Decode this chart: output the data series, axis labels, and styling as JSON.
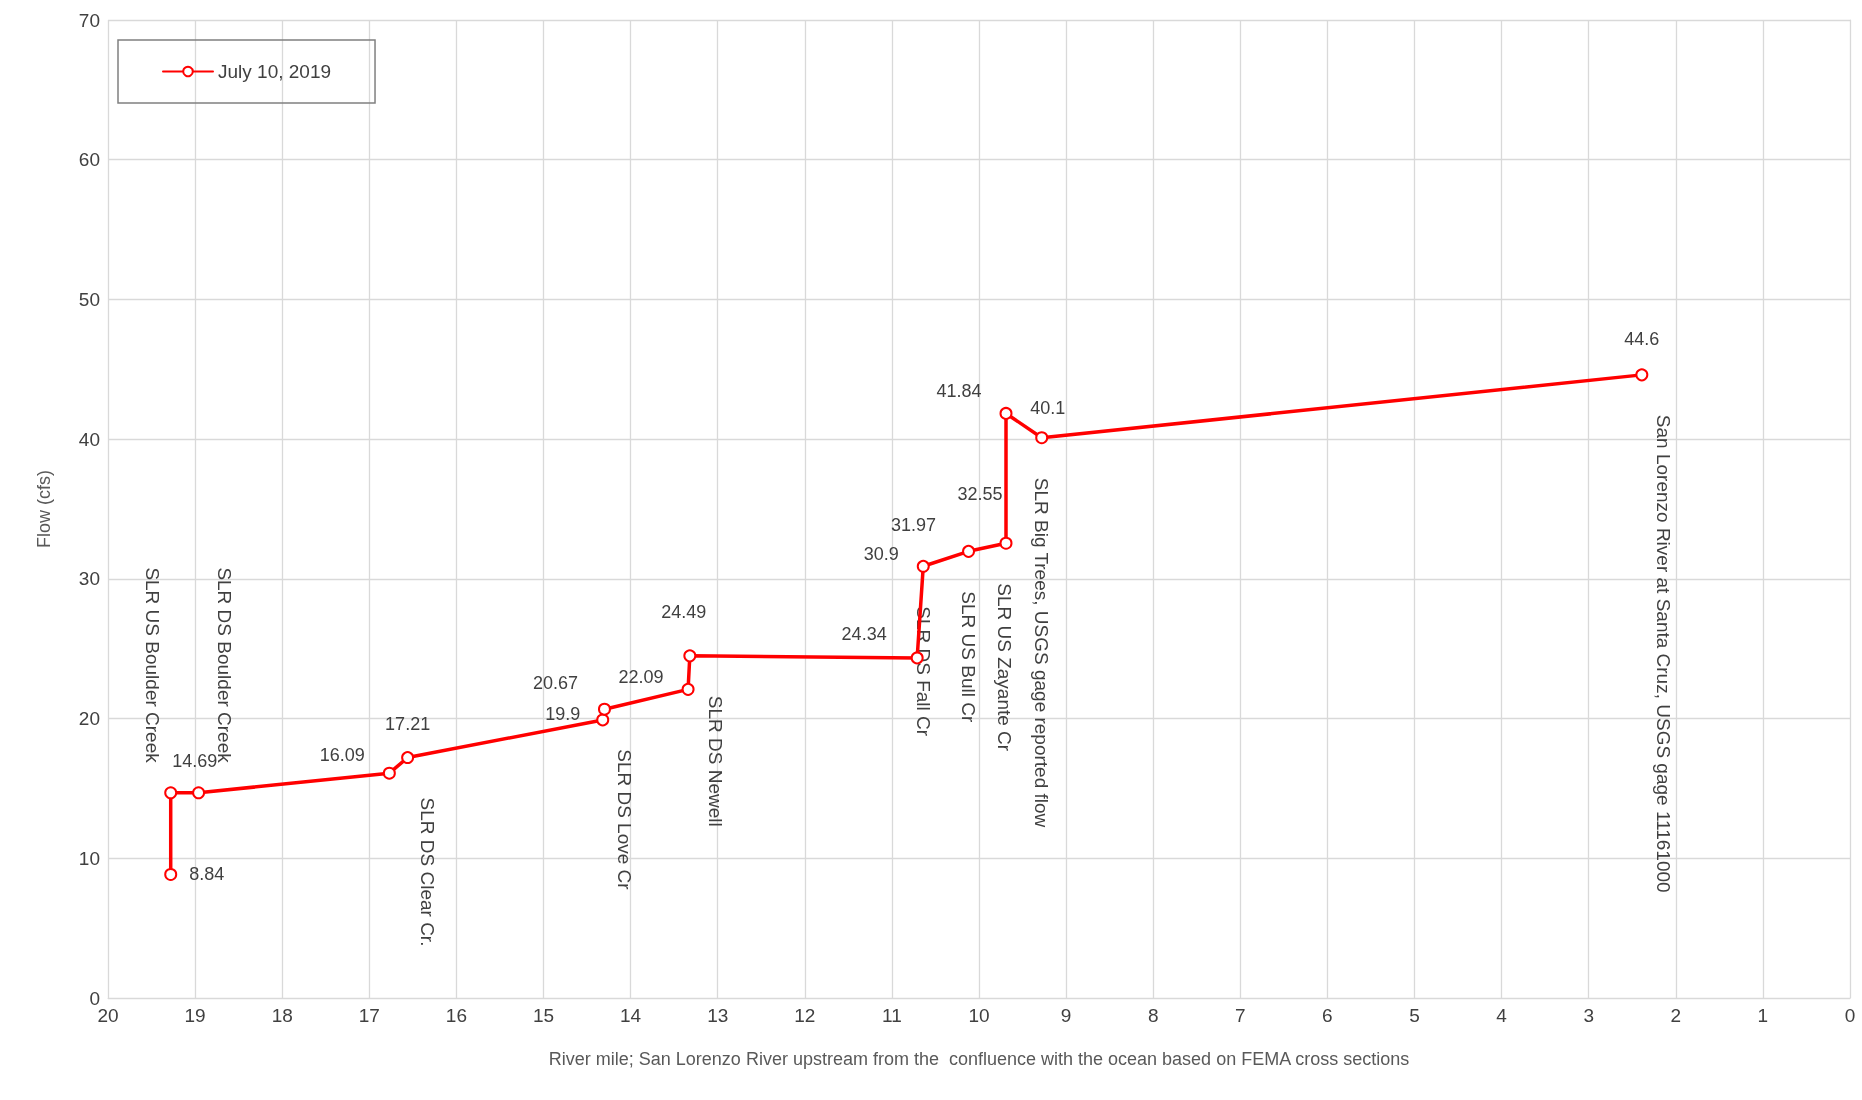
{
  "chart_data": {
    "type": "line",
    "xlabel": "River mile; San Lorenzo River upstream from the  confluence with the ocean based on FEMA cross sections",
    "ylabel": "Flow (cfs)",
    "x": [
      19.28,
      19.28,
      18.96,
      16.77,
      16.56,
      14.32,
      14.3,
      13.34,
      13.32,
      10.71,
      10.64,
      10.12,
      9.69,
      9.69,
      9.28,
      2.39
    ],
    "series": [
      {
        "name": "July 10, 2019",
        "color": "#ff0000",
        "values": [
          8.84,
          14.69,
          14.69,
          16.09,
          17.21,
          19.9,
          20.67,
          22.09,
          24.49,
          24.34,
          30.9,
          31.97,
          32.55,
          41.84,
          40.1,
          44.6
        ],
        "value_labels": [
          "8.84",
          "14.69",
          null,
          "16.09",
          "17.21",
          "19.9",
          "20.67",
          "22.09",
          "24.49",
          "24.34",
          "30.9",
          "31.97",
          "32.55",
          "41.84",
          "40.1",
          "44.6"
        ]
      }
    ],
    "xlim": [
      20,
      0
    ],
    "xticks": [
      20,
      19,
      18,
      17,
      16,
      15,
      14,
      13,
      12,
      11,
      10,
      9,
      8,
      7,
      6,
      5,
      4,
      3,
      2,
      1,
      0
    ],
    "ylim": [
      0,
      70
    ],
    "yticks": [
      0,
      10,
      20,
      30,
      40,
      50,
      60,
      70
    ],
    "grid": true,
    "legend": "top left",
    "marker": "circle",
    "line_style": "solid",
    "annotations": [
      {
        "text": "SLR US Boulder Creek",
        "x": 19.28,
        "y": 14.69
      },
      {
        "text": "SLR DS Boulder Creek",
        "x": 18.96,
        "y": 14.69
      },
      {
        "text": "SLR DS Clear Cr.",
        "x": 16.56,
        "y": 17.21
      },
      {
        "text": "SLR DS Love Cr",
        "x": 14.3,
        "y": 20.67
      },
      {
        "text": "SLR DS Newell",
        "x": 13.32,
        "y": 24.49
      },
      {
        "text": "SLR DS Fall Cr",
        "x": 10.64,
        "y": 30.9
      },
      {
        "text": "SLR US Bull Cr",
        "x": 10.12,
        "y": 31.97
      },
      {
        "text": "SLR US Zayante Cr",
        "x": 9.69,
        "y": 32.55
      },
      {
        "text": "SLR Big Trees, USGS gage reported flow",
        "x": 9.28,
        "y": 40.1
      },
      {
        "text": "San Lorenzo River at Santa Cruz, USGS gage 11161000",
        "x": 2.39,
        "y": 44.6
      }
    ]
  }
}
